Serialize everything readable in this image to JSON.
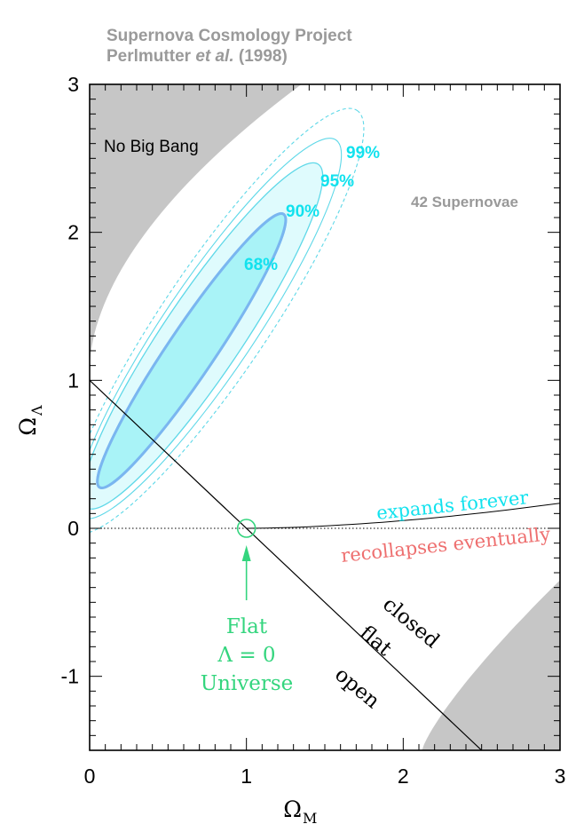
{
  "header": {
    "line1": "Supernova Cosmology Project",
    "line2_author": "Perlmutter",
    "line2_etal": "et al.",
    "line2_year": "(1998)"
  },
  "colors": {
    "exclusion": "#c6c6c6",
    "region_fill": "#a9f3f7",
    "region_fill_light": "#dffbfd",
    "contour_68": "#7ab6f0",
    "contour_outer": "#5fd8e8",
    "cyan_label": "#12e2ee",
    "red_label": "#ee6f6f",
    "green": "#34d57e",
    "gray_label": "#999999"
  },
  "chart_data": {
    "type": "contour",
    "xlabel": "Ω",
    "xlabel_sub": "M",
    "ylabel": "Ω",
    "ylabel_sub": "Λ",
    "xlim": [
      0,
      3
    ],
    "ylim": [
      -1.5,
      3
    ],
    "xticks": [
      "0",
      "1",
      "2",
      "3"
    ],
    "yticks": [
      "-1",
      "0",
      "1",
      "2",
      "3"
    ],
    "sample_size_label": "42 Supernovae",
    "no_big_bang_label": "No Big Bang",
    "contours": [
      {
        "label": "68%",
        "center": [
          0.65,
          1.2
        ],
        "semi_major": 1.05,
        "semi_minor": 0.15
      },
      {
        "label": "90%",
        "center": [
          0.72,
          1.3
        ],
        "semi_major": 1.32,
        "semi_minor": 0.25
      },
      {
        "label": "95%",
        "center": [
          0.76,
          1.35
        ],
        "semi_major": 1.45,
        "semi_minor": 0.29
      },
      {
        "label": "99%",
        "center": [
          0.8,
          1.4
        ],
        "semi_major": 1.62,
        "semi_minor": 0.34
      }
    ],
    "ellipse_angle_deg": 56,
    "flat_line": {
      "label_closed": "closed",
      "label_flat": "flat",
      "label_open": "open",
      "x": [
        0,
        2.5
      ],
      "y": [
        1,
        -1.5
      ]
    },
    "expansion_boundary": {
      "label_above": "expands forever",
      "label_below": "recollapses eventually"
    },
    "flat_lambda0": {
      "point": [
        1,
        0
      ],
      "label_1": "Flat",
      "label_2": "Λ = 0",
      "label_3": "Universe"
    }
  }
}
